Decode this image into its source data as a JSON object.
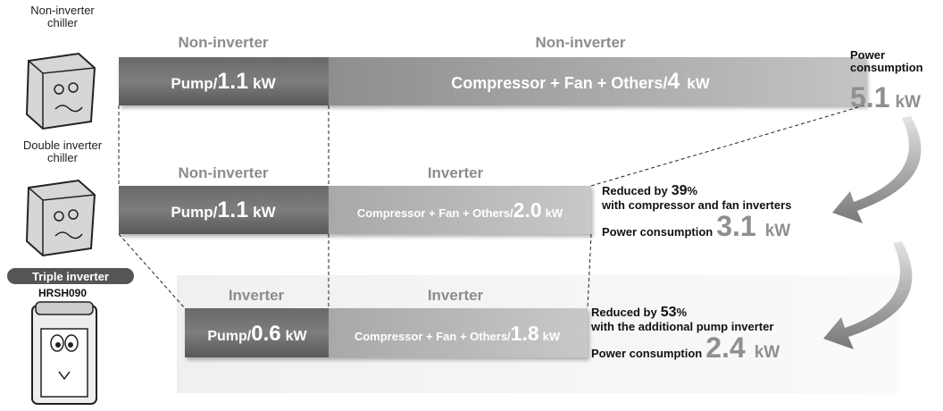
{
  "rows": [
    {
      "label": "Non-inverter chiller",
      "segments": [
        {
          "header": "Non-inverter",
          "name": "Pump/",
          "value": "1.1",
          "unit": "kW"
        },
        {
          "header": "Non-inverter",
          "name": "Compressor + Fan + Others/",
          "value": "4",
          "unit": "kW"
        }
      ],
      "result": {
        "title": "Power consumption",
        "value": "5.1",
        "unit": "kW"
      }
    },
    {
      "label": "Double inverter chiller",
      "segments": [
        {
          "header": "Non-inverter",
          "name": "Pump/",
          "value": "1.1",
          "unit": "kW"
        },
        {
          "header": "Inverter",
          "name": "Compressor + Fan + Others/",
          "value": "2.0",
          "unit": "kW"
        }
      ],
      "result": {
        "reduced_prefix": "Reduced by",
        "reduction": "39",
        "reduction_unit": "%",
        "note": "with compressor and fan inverters",
        "title": "Power consumption",
        "value": "3.1",
        "unit": "kW"
      }
    },
    {
      "label": "Triple inverter",
      "model": "HRSH090",
      "segments": [
        {
          "header": "Inverter",
          "name": "Pump/",
          "value": "0.6",
          "unit": "kW"
        },
        {
          "header": "Inverter",
          "name": "Compressor + Fan + Others/",
          "value": "1.8",
          "unit": "kW"
        }
      ],
      "result": {
        "reduced_prefix": "Reduced by",
        "reduction": "53",
        "reduction_unit": "%",
        "note": "with the additional pump inverter",
        "title": "Power consumption",
        "value": "2.4",
        "unit": "kW"
      }
    }
  ]
}
